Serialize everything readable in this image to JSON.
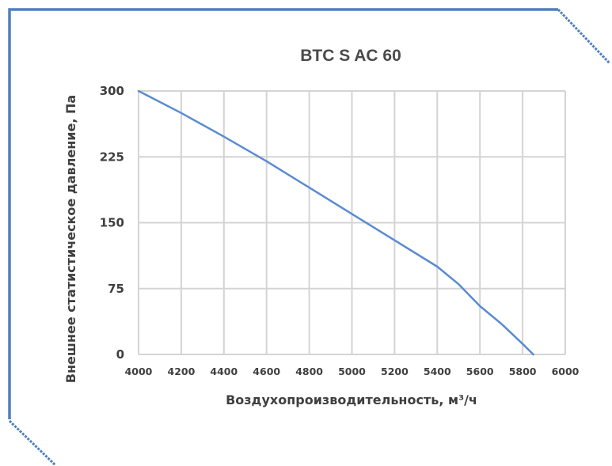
{
  "colors": {
    "frame": "#4f7fbf",
    "series": "#5b8bd0",
    "grid": "#d4d4d4",
    "text": "#3f3f3f"
  },
  "chart_data": {
    "type": "line",
    "title": "BTC S AC 60",
    "xlabel": "Воздухопроизводительность, м³/ч",
    "ylabel": "Внешнее статистическое давление, Па",
    "xlim": [
      4000,
      6000
    ],
    "ylim": [
      0,
      300
    ],
    "x_ticks": [
      4000,
      4200,
      4400,
      4600,
      4800,
      5000,
      5200,
      5400,
      5600,
      5800,
      6000
    ],
    "y_ticks": [
      0,
      75,
      150,
      225,
      300
    ],
    "grid": true,
    "series": [
      {
        "x": [
          4000,
          4200,
          4400,
          4600,
          4800,
          5000,
          5200,
          5400,
          5500,
          5600,
          5700,
          5800,
          5850
        ],
        "y": [
          300,
          275,
          248,
          220,
          190,
          160,
          130,
          100,
          80,
          55,
          35,
          12,
          0
        ]
      }
    ]
  }
}
